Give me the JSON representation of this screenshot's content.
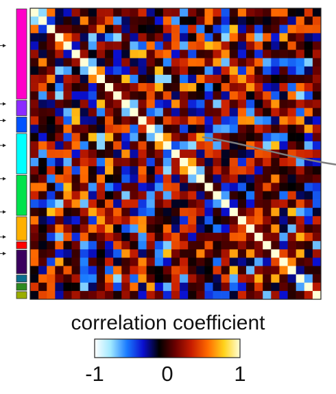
{
  "chart_data": {
    "type": "heatmap",
    "n": 35,
    "diagonal_value": 1,
    "colorbar": {
      "title": "correlation coefficient",
      "min": -1,
      "max": 1,
      "ticks": [
        "-1",
        "0",
        "1"
      ],
      "colors": [
        "#ffffff",
        "#9fe8ff",
        "#1a7bff",
        "#0a0fd0",
        "#000000",
        "#6b0000",
        "#c81d00",
        "#ff6a00",
        "#ffd21a",
        "#ffffd8"
      ]
    },
    "group_bar": {
      "groups": [
        {
          "name": "magenta",
          "color": "#ff00c8",
          "count": 11
        },
        {
          "name": "violet",
          "color": "#8c2bff",
          "count": 2
        },
        {
          "name": "blue",
          "color": "#0052ff",
          "count": 2
        },
        {
          "name": "cyan",
          "color": "#00ffff",
          "count": 5
        },
        {
          "name": "green",
          "color": "#00e24c",
          "count": 5
        },
        {
          "name": "orange",
          "color": "#ffb000",
          "count": 3
        },
        {
          "name": "red",
          "color": "#ff0000",
          "count": 1
        },
        {
          "name": "purple",
          "color": "#3a005e",
          "count": 3
        },
        {
          "name": "teal",
          "color": "#0b6e8f",
          "count": 1
        },
        {
          "name": "darkgreen",
          "color": "#2e8a1f",
          "count": 1
        },
        {
          "name": "olive",
          "color": "#9aad00",
          "count": 1
        }
      ],
      "arrow_rows": [
        4,
        11,
        13,
        16,
        20,
        24,
        27,
        29
      ]
    },
    "highlight": {
      "row": 15,
      "col": 20,
      "value": 0.7
    },
    "seed": 7
  }
}
